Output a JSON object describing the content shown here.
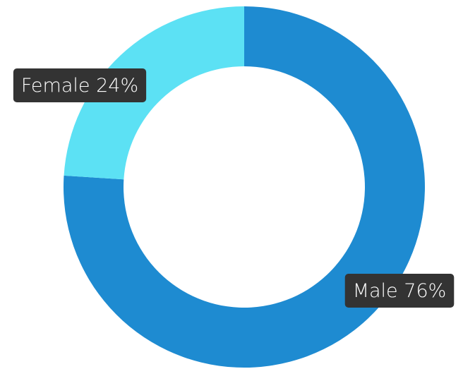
{
  "chart_data": {
    "type": "donut",
    "categories": [
      "Male",
      "Female"
    ],
    "values": [
      76,
      24
    ],
    "value_labels": [
      "76%",
      "24%"
    ],
    "colors": [
      "#1e8bd1",
      "#5ce1f4"
    ]
  }
}
